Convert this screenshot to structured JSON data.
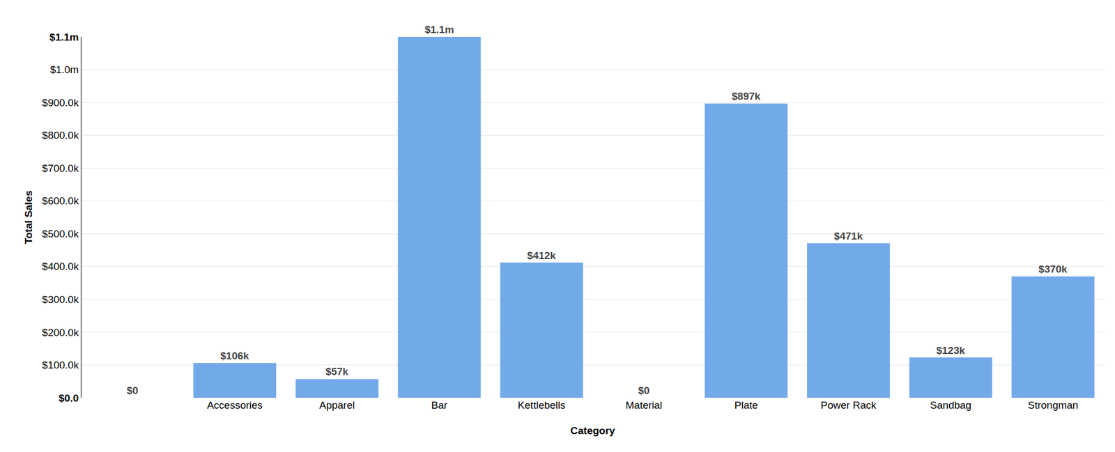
{
  "chart_data": {
    "type": "bar",
    "x_label": "Category",
    "y_label": "Total Sales",
    "categories": [
      null,
      "Accessories",
      "Apparel",
      "Bar",
      "Kettlebells",
      "Material",
      "Plate",
      "Power Rack",
      "Sandbag",
      "Strongman"
    ],
    "values": [
      0,
      106000,
      57000,
      1100000,
      412000,
      0,
      897000,
      471000,
      123000,
      370000
    ],
    "value_labels": [
      "$0",
      "$106k",
      "$57k",
      "$1.1m",
      "$412k",
      "$0",
      "$897k",
      "$471k",
      "$123k",
      "$370k"
    ],
    "color": "#72a9e9",
    "ylim": [
      0,
      1100000
    ],
    "yticks": [
      {
        "value": 0,
        "label": "$0.0"
      },
      {
        "value": 100000,
        "label": "$100.0k"
      },
      {
        "value": 200000,
        "label": "$200.0k"
      },
      {
        "value": 300000,
        "label": "$300.0k"
      },
      {
        "value": 400000,
        "label": "$400.0k"
      },
      {
        "value": 500000,
        "label": "$500.0k"
      },
      {
        "value": 600000,
        "label": "$600.0k"
      },
      {
        "value": 700000,
        "label": "$700.0k"
      },
      {
        "value": 800000,
        "label": "$800.0k"
      },
      {
        "value": 900000,
        "label": "$900.0k"
      },
      {
        "value": 1000000,
        "label": "$1.0m"
      },
      {
        "value": 1100000,
        "label": "$1.1m"
      }
    ],
    "grid": true,
    "data_labels": true
  }
}
